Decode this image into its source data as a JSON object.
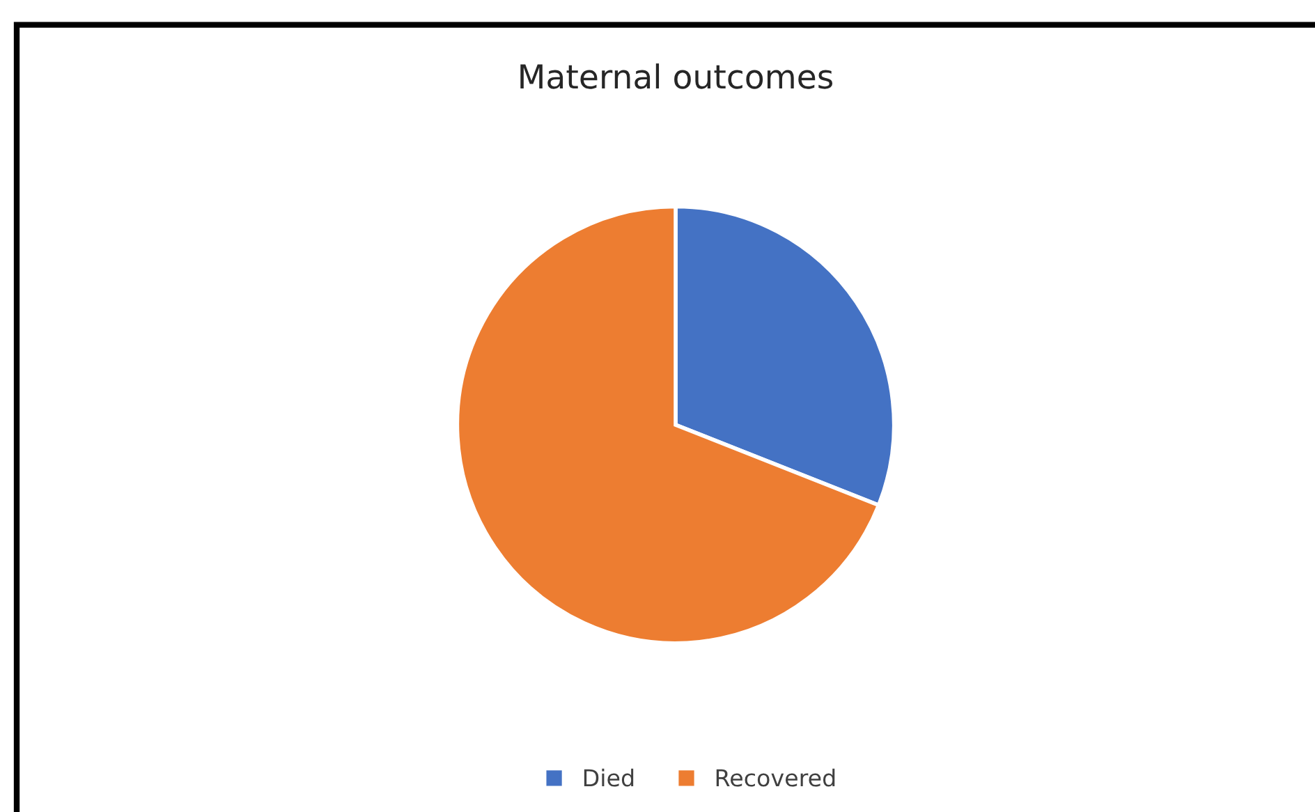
{
  "chart_data": {
    "type": "pie",
    "title": "Maternal outcomes",
    "categories": [
      "Died",
      "Recovered"
    ],
    "values": [
      31,
      69
    ],
    "colors": [
      "#4472c4",
      "#ed7d31"
    ],
    "legend": "bottom"
  }
}
